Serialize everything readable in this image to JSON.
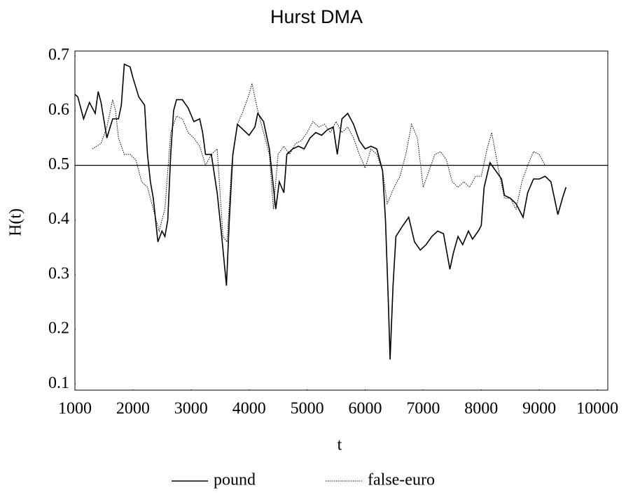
{
  "chart_data": {
    "type": "line",
    "title": "Hurst DMA",
    "xlabel": "t",
    "ylabel": "H(t)",
    "xlim": [
      1000,
      10180
    ],
    "ylim": [
      0.089,
      0.709
    ],
    "xticks": [
      1000,
      2000,
      3000,
      4000,
      5000,
      6000,
      7000,
      8000,
      9000,
      10000
    ],
    "yticks": [
      0.1,
      0.2,
      0.3,
      0.4,
      0.5,
      0.6,
      0.7
    ],
    "hline": 0.5,
    "series": [
      {
        "name": "pound",
        "color": "#000000",
        "dash": "solid",
        "x": [
          1000,
          1050,
          1150,
          1250,
          1350,
          1400,
          1450,
          1550,
          1650,
          1750,
          1800,
          1850,
          1950,
          2000,
          2100,
          2200,
          2250,
          2300,
          2350,
          2430,
          2500,
          2550,
          2600,
          2650,
          2700,
          2750,
          2850,
          2950,
          3050,
          3150,
          3200,
          3250,
          3350,
          3450,
          3520,
          3610,
          3660,
          3720,
          3800,
          3900,
          4000,
          4100,
          4150,
          4250,
          4350,
          4460,
          4520,
          4600,
          4650,
          4750,
          4850,
          4950,
          5050,
          5150,
          5250,
          5350,
          5450,
          5520,
          5600,
          5700,
          5800,
          5900,
          6000,
          6100,
          6200,
          6300,
          6350,
          6400,
          6430,
          6480,
          6530,
          6650,
          6750,
          6850,
          6950,
          7050,
          7150,
          7250,
          7350,
          7460,
          7520,
          7600,
          7680,
          7780,
          7850,
          7950,
          8000,
          8050,
          8150,
          8250,
          8350,
          8400,
          8500,
          8600,
          8720,
          8800,
          8900,
          9000,
          9100,
          9200,
          9320,
          9400,
          9460
        ],
        "values": [
          0.63,
          0.625,
          0.585,
          0.615,
          0.595,
          0.635,
          0.615,
          0.55,
          0.585,
          0.585,
          0.61,
          0.685,
          0.68,
          0.66,
          0.625,
          0.61,
          0.52,
          0.47,
          0.44,
          0.36,
          0.38,
          0.37,
          0.4,
          0.52,
          0.6,
          0.62,
          0.62,
          0.605,
          0.58,
          0.585,
          0.56,
          0.52,
          0.52,
          0.45,
          0.38,
          0.28,
          0.4,
          0.52,
          0.575,
          0.565,
          0.555,
          0.57,
          0.595,
          0.58,
          0.53,
          0.42,
          0.47,
          0.45,
          0.52,
          0.53,
          0.535,
          0.53,
          0.55,
          0.56,
          0.555,
          0.565,
          0.57,
          0.52,
          0.585,
          0.595,
          0.575,
          0.545,
          0.53,
          0.535,
          0.53,
          0.49,
          0.4,
          0.25,
          0.145,
          0.28,
          0.37,
          0.39,
          0.405,
          0.36,
          0.345,
          0.355,
          0.37,
          0.38,
          0.375,
          0.31,
          0.34,
          0.37,
          0.355,
          0.38,
          0.365,
          0.38,
          0.39,
          0.46,
          0.505,
          0.49,
          0.475,
          0.445,
          0.44,
          0.43,
          0.405,
          0.45,
          0.475,
          0.475,
          0.48,
          0.47,
          0.41,
          0.44,
          0.46
        ]
      },
      {
        "name": "false-euro",
        "color": "#000000",
        "dash": "dotted",
        "x": [
          1300,
          1450,
          1550,
          1650,
          1700,
          1750,
          1850,
          1950,
          2050,
          2150,
          2250,
          2350,
          2450,
          2550,
          2650,
          2750,
          2850,
          2950,
          3050,
          3150,
          3250,
          3350,
          3450,
          3550,
          3620,
          3700,
          3800,
          3900,
          4000,
          4050,
          4150,
          4250,
          4350,
          4420,
          4500,
          4600,
          4700,
          4800,
          4900,
          5000,
          5100,
          5200,
          5300,
          5400,
          5500,
          5600,
          5700,
          5800,
          5900,
          6000,
          6100,
          6200,
          6300,
          6380,
          6500,
          6600,
          6700,
          6800,
          6900,
          7000,
          7100,
          7200,
          7300,
          7400,
          7500,
          7600,
          7700,
          7800,
          7900,
          8000,
          8100,
          8180,
          8250,
          8300,
          8400,
          8500,
          8600,
          8700,
          8800,
          8900,
          9000,
          9100
        ],
        "values": [
          0.53,
          0.54,
          0.57,
          0.62,
          0.6,
          0.55,
          0.52,
          0.52,
          0.51,
          0.47,
          0.46,
          0.42,
          0.38,
          0.42,
          0.56,
          0.59,
          0.585,
          0.56,
          0.55,
          0.535,
          0.5,
          0.52,
          0.53,
          0.37,
          0.36,
          0.5,
          0.575,
          0.6,
          0.63,
          0.65,
          0.6,
          0.56,
          0.52,
          0.42,
          0.52,
          0.535,
          0.52,
          0.54,
          0.545,
          0.56,
          0.58,
          0.57,
          0.575,
          0.56,
          0.58,
          0.56,
          0.57,
          0.55,
          0.52,
          0.495,
          0.53,
          0.52,
          0.49,
          0.43,
          0.46,
          0.48,
          0.52,
          0.575,
          0.55,
          0.46,
          0.49,
          0.52,
          0.525,
          0.51,
          0.47,
          0.46,
          0.47,
          0.46,
          0.48,
          0.48,
          0.53,
          0.56,
          0.52,
          0.49,
          0.44,
          0.44,
          0.42,
          0.47,
          0.5,
          0.525,
          0.52,
          0.5
        ]
      }
    ]
  }
}
